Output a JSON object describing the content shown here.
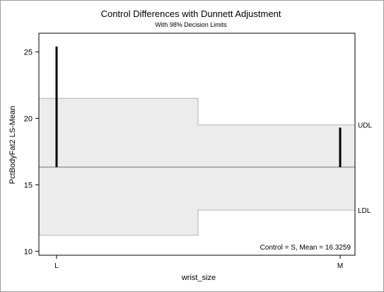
{
  "chart_data": {
    "type": "dunnett-control-difference",
    "title": "Control Differences with Dunnett Adjustment",
    "subtitle": "With 98% Decision Limits",
    "xlabel": "wrist_size",
    "ylabel": "PctBodyFat2 LS-Mean",
    "categories": [
      "L",
      "M"
    ],
    "ylim": [
      9.7,
      26.4
    ],
    "y_ticks": [
      10,
      15,
      20,
      25
    ],
    "control_mean": 16.3259,
    "control_note": "Control = S, Mean = 16.3259",
    "lsmeans": [
      {
        "category": "L",
        "value": 25.4
      },
      {
        "category": "M",
        "value": 19.3
      }
    ],
    "decision_limits": [
      {
        "category": "L",
        "udl": 21.5,
        "ldl": 11.2
      },
      {
        "category": "M",
        "udl": 19.5,
        "ldl": 13.1
      }
    ],
    "limit_labels": {
      "upper": "UDL",
      "lower": "LDL"
    },
    "colors": {
      "band_fill": "#ececec",
      "band_edge": "#b4b4b4",
      "control_line": "#9a9a9a",
      "spike": "#000000"
    }
  }
}
